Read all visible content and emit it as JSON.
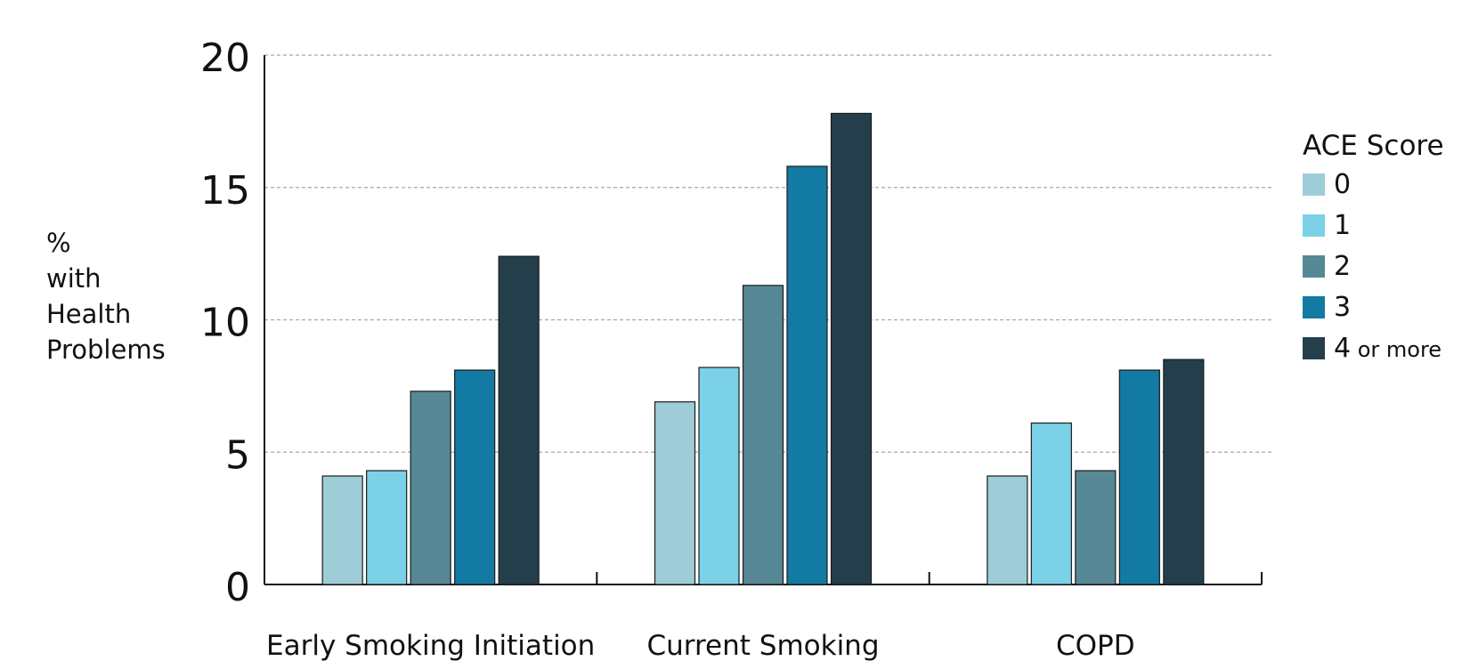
{
  "chart_data": {
    "type": "bar",
    "categories": [
      "Early Smoking Initiation",
      "Current Smoking",
      "COPD"
    ],
    "series": [
      {
        "name": "0",
        "values": [
          4.1,
          6.9,
          4.1
        ],
        "color": "#9ecdd8"
      },
      {
        "name": "1",
        "values": [
          4.3,
          8.2,
          6.1
        ],
        "color": "#7bd2e8"
      },
      {
        "name": "2",
        "values": [
          7.3,
          11.3,
          4.3
        ],
        "color": "#568896"
      },
      {
        "name": "3",
        "values": [
          8.1,
          15.8,
          8.1
        ],
        "color": "#137aa3"
      },
      {
        "name": "4 or more",
        "values": [
          12.4,
          17.8,
          8.5
        ],
        "color": "#243f4b"
      }
    ],
    "ylim": [
      0,
      20
    ],
    "yticks": [
      "0",
      "5",
      "10",
      "15",
      "20"
    ],
    "ylabel": [
      "%",
      "with",
      "Health",
      "Problems"
    ],
    "legend": {
      "title": "ACE Score",
      "position": "right"
    },
    "grid": "horizontal-dashed"
  }
}
